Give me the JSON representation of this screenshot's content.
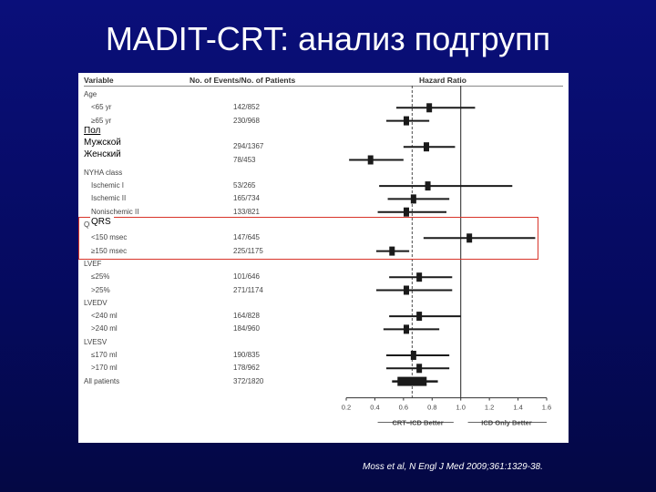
{
  "slide": {
    "title": "MADIT-CRT: анализ подгрупп",
    "citation": "Moss et al, N Engl J Med 2009;361:1329-38."
  },
  "table": {
    "col_variable": "Variable",
    "col_events": "No. of Events/No. of Patients",
    "col_hr": "Hazard Ratio"
  },
  "overlays": {
    "sex_title": "Пол",
    "sex_male": "Мужской",
    "sex_female": "Женский",
    "qrs_title": "QRS"
  },
  "colors": {
    "background": "#0a0f7a",
    "highlight": "#d9352a",
    "marker": "#1a1a1a"
  },
  "chart_data": {
    "type": "forest",
    "xlabel": "",
    "xlim": [
      0.2,
      1.6
    ],
    "xticks": [
      "0.2",
      "0.4",
      "0.6",
      "0.8",
      "1.0",
      "1.2",
      "1.4",
      "1.6"
    ],
    "reference_line": 1.0,
    "overall_line": 0.66,
    "left_label": "CRT–ICD Better",
    "right_label": "ICD Only Better",
    "rows": [
      {
        "label": "Age",
        "header": true
      },
      {
        "label": "<65 yr",
        "events": "142/852",
        "hr": 0.78,
        "lo": 0.55,
        "hi": 1.1,
        "indent": true
      },
      {
        "label": "≥65 yr",
        "events": "230/968",
        "hr": 0.62,
        "lo": 0.48,
        "hi": 0.78,
        "indent": true
      },
      {
        "label": "Sex",
        "header": true
      },
      {
        "label": "Male",
        "events": "294/1367",
        "hr": 0.76,
        "lo": 0.6,
        "hi": 0.96,
        "indent": true
      },
      {
        "label": "Female",
        "events": "78/453",
        "hr": 0.37,
        "lo": 0.22,
        "hi": 0.6,
        "indent": true
      },
      {
        "label": "NYHA class",
        "header": true
      },
      {
        "label": "Ischemic I",
        "events": "53/265",
        "hr": 0.77,
        "lo": 0.43,
        "hi": 1.36,
        "indent": true
      },
      {
        "label": "Ischemic II",
        "events": "165/734",
        "hr": 0.67,
        "lo": 0.49,
        "hi": 0.92,
        "indent": true
      },
      {
        "label": "Nonischemic II",
        "events": "133/821",
        "hr": 0.62,
        "lo": 0.42,
        "hi": 0.9,
        "indent": true
      },
      {
        "label": "QRS",
        "header": true
      },
      {
        "label": "<150 msec",
        "events": "147/645",
        "hr": 1.06,
        "lo": 0.74,
        "hi": 1.52,
        "indent": true
      },
      {
        "label": "≥150 msec",
        "events": "225/1175",
        "hr": 0.52,
        "lo": 0.41,
        "hi": 0.64,
        "indent": true
      },
      {
        "label": "LVEF",
        "header": true
      },
      {
        "label": "≤25%",
        "events": "101/646",
        "hr": 0.71,
        "lo": 0.5,
        "hi": 0.94,
        "indent": true
      },
      {
        "label": ">25%",
        "events": "271/1174",
        "hr": 0.62,
        "lo": 0.41,
        "hi": 0.94,
        "indent": true
      },
      {
        "label": "LVEDV",
        "header": true
      },
      {
        "label": "<240 ml",
        "events": "164/828",
        "hr": 0.71,
        "lo": 0.5,
        "hi": 1.0,
        "indent": true
      },
      {
        "label": ">240 ml",
        "events": "184/960",
        "hr": 0.62,
        "lo": 0.46,
        "hi": 0.85,
        "indent": true
      },
      {
        "label": "LVESV",
        "header": true
      },
      {
        "label": "≤170 ml",
        "events": "190/835",
        "hr": 0.67,
        "lo": 0.48,
        "hi": 0.92,
        "indent": true
      },
      {
        "label": ">170 ml",
        "events": "178/962",
        "hr": 0.71,
        "lo": 0.48,
        "hi": 0.92,
        "indent": true
      },
      {
        "label": "All patients",
        "events": "372/1820",
        "hr": 0.66,
        "lo": 0.52,
        "hi": 0.84,
        "overall": true
      }
    ]
  }
}
